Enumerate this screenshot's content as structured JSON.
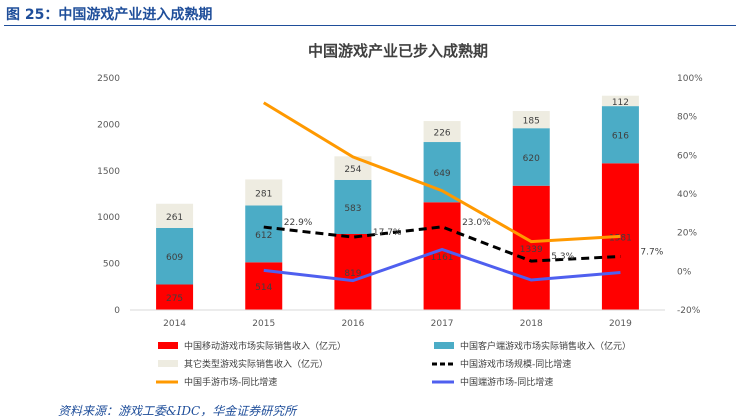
{
  "figure": {
    "title": "图 25：中国游戏产业进入成熟期",
    "source": "资料来源：游戏工委&IDC，华金证券研究所"
  },
  "chart_data": {
    "type": "bar",
    "title": "中国游戏产业已步入成熟期",
    "categories": [
      "2014",
      "2015",
      "2016",
      "2017",
      "2018",
      "2019"
    ],
    "ylim": [
      0,
      2500
    ],
    "yticks": [
      "0",
      "500",
      "1000",
      "1500",
      "2000",
      "2500"
    ],
    "y2lim": [
      -20,
      100
    ],
    "y2ticks": [
      "-20%",
      "0%",
      "20%",
      "40%",
      "60%",
      "80%",
      "100%"
    ],
    "series": [
      {
        "name": "中国移动游戏市场实际销售收入（亿元）",
        "kind": "bar",
        "color": "#ff0000",
        "values": [
          275,
          514,
          819,
          1161,
          1339,
          1581
        ],
        "labels": [
          "275",
          "514",
          "819",
          "1161",
          "1339",
          "1581"
        ]
      },
      {
        "name": "中国客户端游戏市场实际销售收入（亿元）",
        "kind": "bar",
        "color": "#4bacc6",
        "values": [
          609,
          612,
          583,
          649,
          620,
          616
        ],
        "labels": [
          "609",
          "612",
          "583",
          "649",
          "620",
          "616"
        ]
      },
      {
        "name": "其它类型游戏实际销售收入（亿元）",
        "kind": "bar",
        "color": "#eeece1",
        "values": [
          261,
          281,
          254,
          226,
          185,
          112
        ],
        "labels": [
          "261",
          "281",
          "254",
          "226",
          "185",
          "112"
        ]
      },
      {
        "name": "中国游戏市场规模-同比增速",
        "kind": "line",
        "color": "#000000",
        "dash": true,
        "values": [
          null,
          22.9,
          17.7,
          23.0,
          5.3,
          7.7
        ],
        "labels": [
          "",
          "22.9%",
          "17.7%",
          "23.0%",
          "5.3%",
          "7.7%"
        ]
      },
      {
        "name": "中国手游市场-同比增速",
        "kind": "line",
        "color": "#ff9900",
        "values": [
          null,
          87.2,
          59.2,
          41.7,
          15.4,
          18.1
        ],
        "labels": []
      },
      {
        "name": "中国端游市场-同比增速",
        "kind": "line",
        "color": "#4f5fef",
        "values": [
          null,
          0.5,
          -4.8,
          11.3,
          -4.5,
          -0.6
        ],
        "labels": []
      }
    ]
  }
}
